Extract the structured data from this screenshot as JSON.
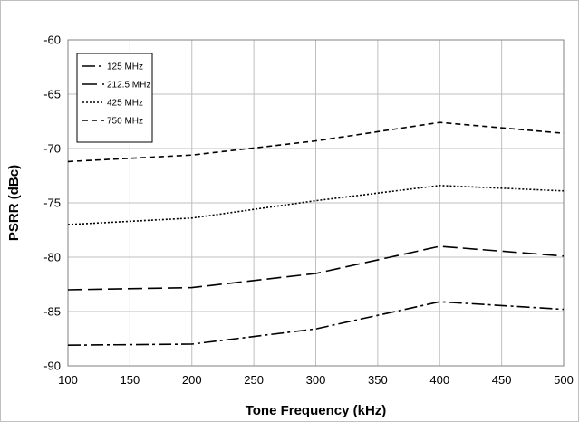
{
  "chart_data": {
    "type": "line",
    "title": "",
    "xlabel": "Tone Frequency (kHz)",
    "ylabel": "PSRR (dBc)",
    "xlim": [
      100,
      500
    ],
    "ylim": [
      -90,
      -60
    ],
    "xticks": [
      100,
      150,
      200,
      250,
      300,
      350,
      400,
      450,
      500
    ],
    "yticks": [
      -60,
      -65,
      -70,
      -75,
      -80,
      -85,
      -90
    ],
    "x": [
      100,
      200,
      300,
      400,
      500
    ],
    "grid": true,
    "legend_position": "top-left",
    "series": [
      {
        "name": "125 MHz",
        "values": [
          -88.1,
          -88.0,
          -86.6,
          -84.1,
          -84.8
        ],
        "style": "dash-dot"
      },
      {
        "name": "212.5 MHz",
        "values": [
          -83.0,
          -82.8,
          -81.5,
          -79.0,
          -79.9
        ],
        "style": "long-dash"
      },
      {
        "name": "425 MHz",
        "values": [
          -77.0,
          -76.4,
          -74.8,
          -73.4,
          -73.9
        ],
        "style": "dotted"
      },
      {
        "name": "750 MHz",
        "values": [
          -71.2,
          -70.6,
          -69.3,
          -67.6,
          -68.6
        ],
        "style": "short-dash"
      }
    ]
  }
}
